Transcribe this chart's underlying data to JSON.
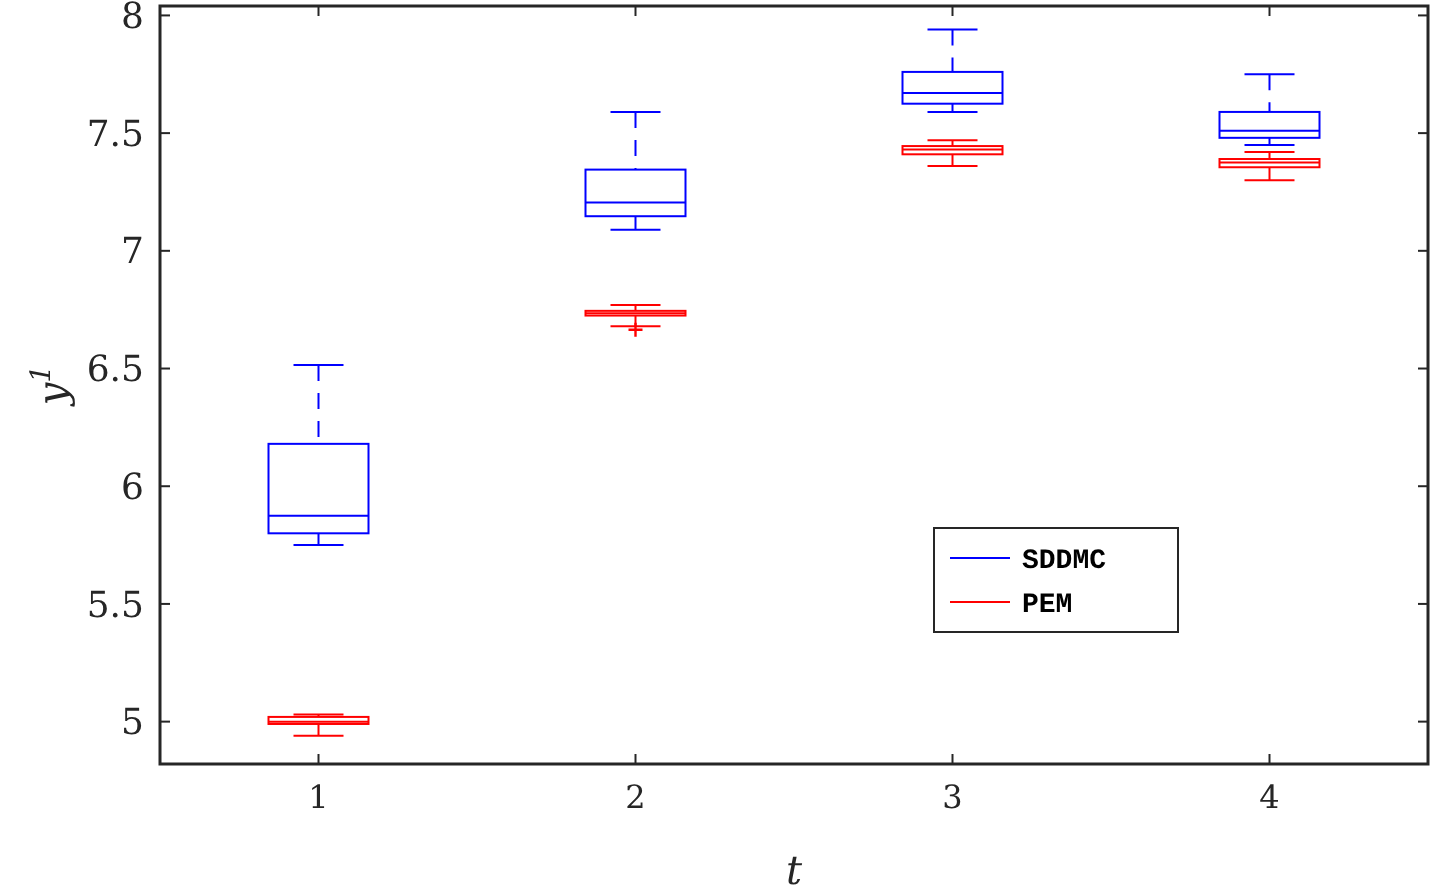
{
  "chart_data": {
    "type": "box",
    "xlabel": "t",
    "ylabel": "y$^{1}$",
    "categories": [
      "1",
      "2",
      "3",
      "4"
    ],
    "ylim": [
      4.82,
      8.04
    ],
    "yticks": [
      5,
      5.5,
      6,
      6.5,
      7,
      7.5,
      8
    ],
    "legend": "right",
    "series": [
      {
        "name": "SDDMC",
        "color": "#0000ff",
        "boxes": [
          {
            "low": 5.75,
            "q1": 5.8,
            "median": 5.875,
            "q3": 6.18,
            "high": 6.515
          },
          {
            "low": 7.09,
            "q1": 7.147,
            "median": 7.205,
            "q3": 7.345,
            "high": 7.59
          },
          {
            "low": 7.59,
            "q1": 7.625,
            "median": 7.67,
            "q3": 7.76,
            "high": 7.94
          },
          {
            "low": 7.45,
            "q1": 7.48,
            "median": 7.51,
            "q3": 7.59,
            "high": 7.75
          }
        ]
      },
      {
        "name": "PEM",
        "color": "#ff0000",
        "boxes": [
          {
            "low": 4.94,
            "q1": 4.99,
            "median": 5.0,
            "q3": 5.02,
            "high": 5.03
          },
          {
            "low": 6.68,
            "q1": 6.725,
            "median": 6.735,
            "q3": 6.745,
            "high": 6.77,
            "outliers": [
              6.665
            ]
          },
          {
            "low": 7.36,
            "q1": 7.41,
            "median": 7.43,
            "q3": 7.445,
            "high": 7.47
          },
          {
            "low": 7.3,
            "q1": 7.355,
            "median": 7.375,
            "q3": 7.39,
            "high": 7.42
          }
        ]
      }
    ]
  }
}
